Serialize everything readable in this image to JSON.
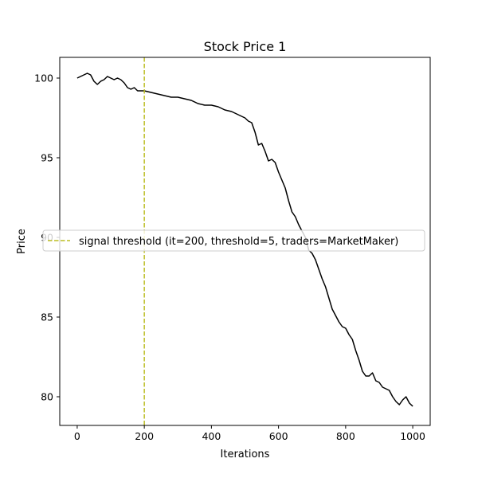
{
  "chart_data": {
    "type": "line",
    "title": "Stock Price 1",
    "xlabel": "Iterations",
    "ylabel": "Price",
    "xlim": [
      -52,
      1052
    ],
    "ylim": [
      78.2,
      101.3
    ],
    "xticks": [
      0,
      200,
      400,
      600,
      800,
      1000
    ],
    "yticks": [
      80,
      85,
      90,
      95,
      100
    ],
    "grid": false,
    "legend_position": "center-left",
    "series": [
      {
        "name": "",
        "color": "#000000",
        "points": [
          [
            0,
            100.0
          ],
          [
            10,
            100.1
          ],
          [
            20,
            100.2
          ],
          [
            30,
            100.3
          ],
          [
            40,
            100.2
          ],
          [
            50,
            99.8
          ],
          [
            60,
            99.6
          ],
          [
            70,
            99.8
          ],
          [
            80,
            99.9
          ],
          [
            90,
            100.1
          ],
          [
            100,
            100.0
          ],
          [
            110,
            99.9
          ],
          [
            120,
            100.0
          ],
          [
            130,
            99.9
          ],
          [
            140,
            99.7
          ],
          [
            150,
            99.4
          ],
          [
            160,
            99.3
          ],
          [
            170,
            99.4
          ],
          [
            180,
            99.2
          ],
          [
            200,
            99.2
          ],
          [
            220,
            99.1
          ],
          [
            240,
            99.0
          ],
          [
            260,
            98.9
          ],
          [
            280,
            98.8
          ],
          [
            300,
            98.8
          ],
          [
            320,
            98.7
          ],
          [
            340,
            98.6
          ],
          [
            360,
            98.4
          ],
          [
            380,
            98.3
          ],
          [
            400,
            98.3
          ],
          [
            420,
            98.2
          ],
          [
            440,
            98.0
          ],
          [
            460,
            97.9
          ],
          [
            480,
            97.7
          ],
          [
            500,
            97.5
          ],
          [
            510,
            97.3
          ],
          [
            520,
            97.2
          ],
          [
            530,
            96.6
          ],
          [
            540,
            95.8
          ],
          [
            550,
            95.9
          ],
          [
            560,
            95.4
          ],
          [
            570,
            94.8
          ],
          [
            580,
            94.9
          ],
          [
            590,
            94.7
          ],
          [
            600,
            94.1
          ],
          [
            610,
            93.6
          ],
          [
            620,
            93.1
          ],
          [
            630,
            92.3
          ],
          [
            640,
            91.6
          ],
          [
            650,
            91.3
          ],
          [
            660,
            90.8
          ],
          [
            670,
            90.4
          ],
          [
            680,
            90.0
          ],
          [
            690,
            89.2
          ],
          [
            700,
            89.0
          ],
          [
            710,
            88.6
          ],
          [
            720,
            88.0
          ],
          [
            730,
            87.4
          ],
          [
            740,
            86.9
          ],
          [
            750,
            86.2
          ],
          [
            760,
            85.5
          ],
          [
            770,
            85.1
          ],
          [
            780,
            84.7
          ],
          [
            790,
            84.4
          ],
          [
            800,
            84.3
          ],
          [
            810,
            83.9
          ],
          [
            820,
            83.6
          ],
          [
            830,
            82.9
          ],
          [
            840,
            82.3
          ],
          [
            850,
            81.6
          ],
          [
            860,
            81.3
          ],
          [
            870,
            81.3
          ],
          [
            880,
            81.5
          ],
          [
            890,
            81.0
          ],
          [
            900,
            80.9
          ],
          [
            910,
            80.6
          ],
          [
            920,
            80.5
          ],
          [
            930,
            80.4
          ],
          [
            940,
            80.0
          ],
          [
            950,
            79.7
          ],
          [
            960,
            79.5
          ],
          [
            970,
            79.8
          ],
          [
            980,
            80.0
          ],
          [
            990,
            79.6
          ],
          [
            1000,
            79.4
          ]
        ]
      }
    ],
    "threshold_line": {
      "x": 200,
      "color": "#bcbd22",
      "label": "signal threshold (it=200, threshold=5, traders=MarketMaker)"
    }
  }
}
